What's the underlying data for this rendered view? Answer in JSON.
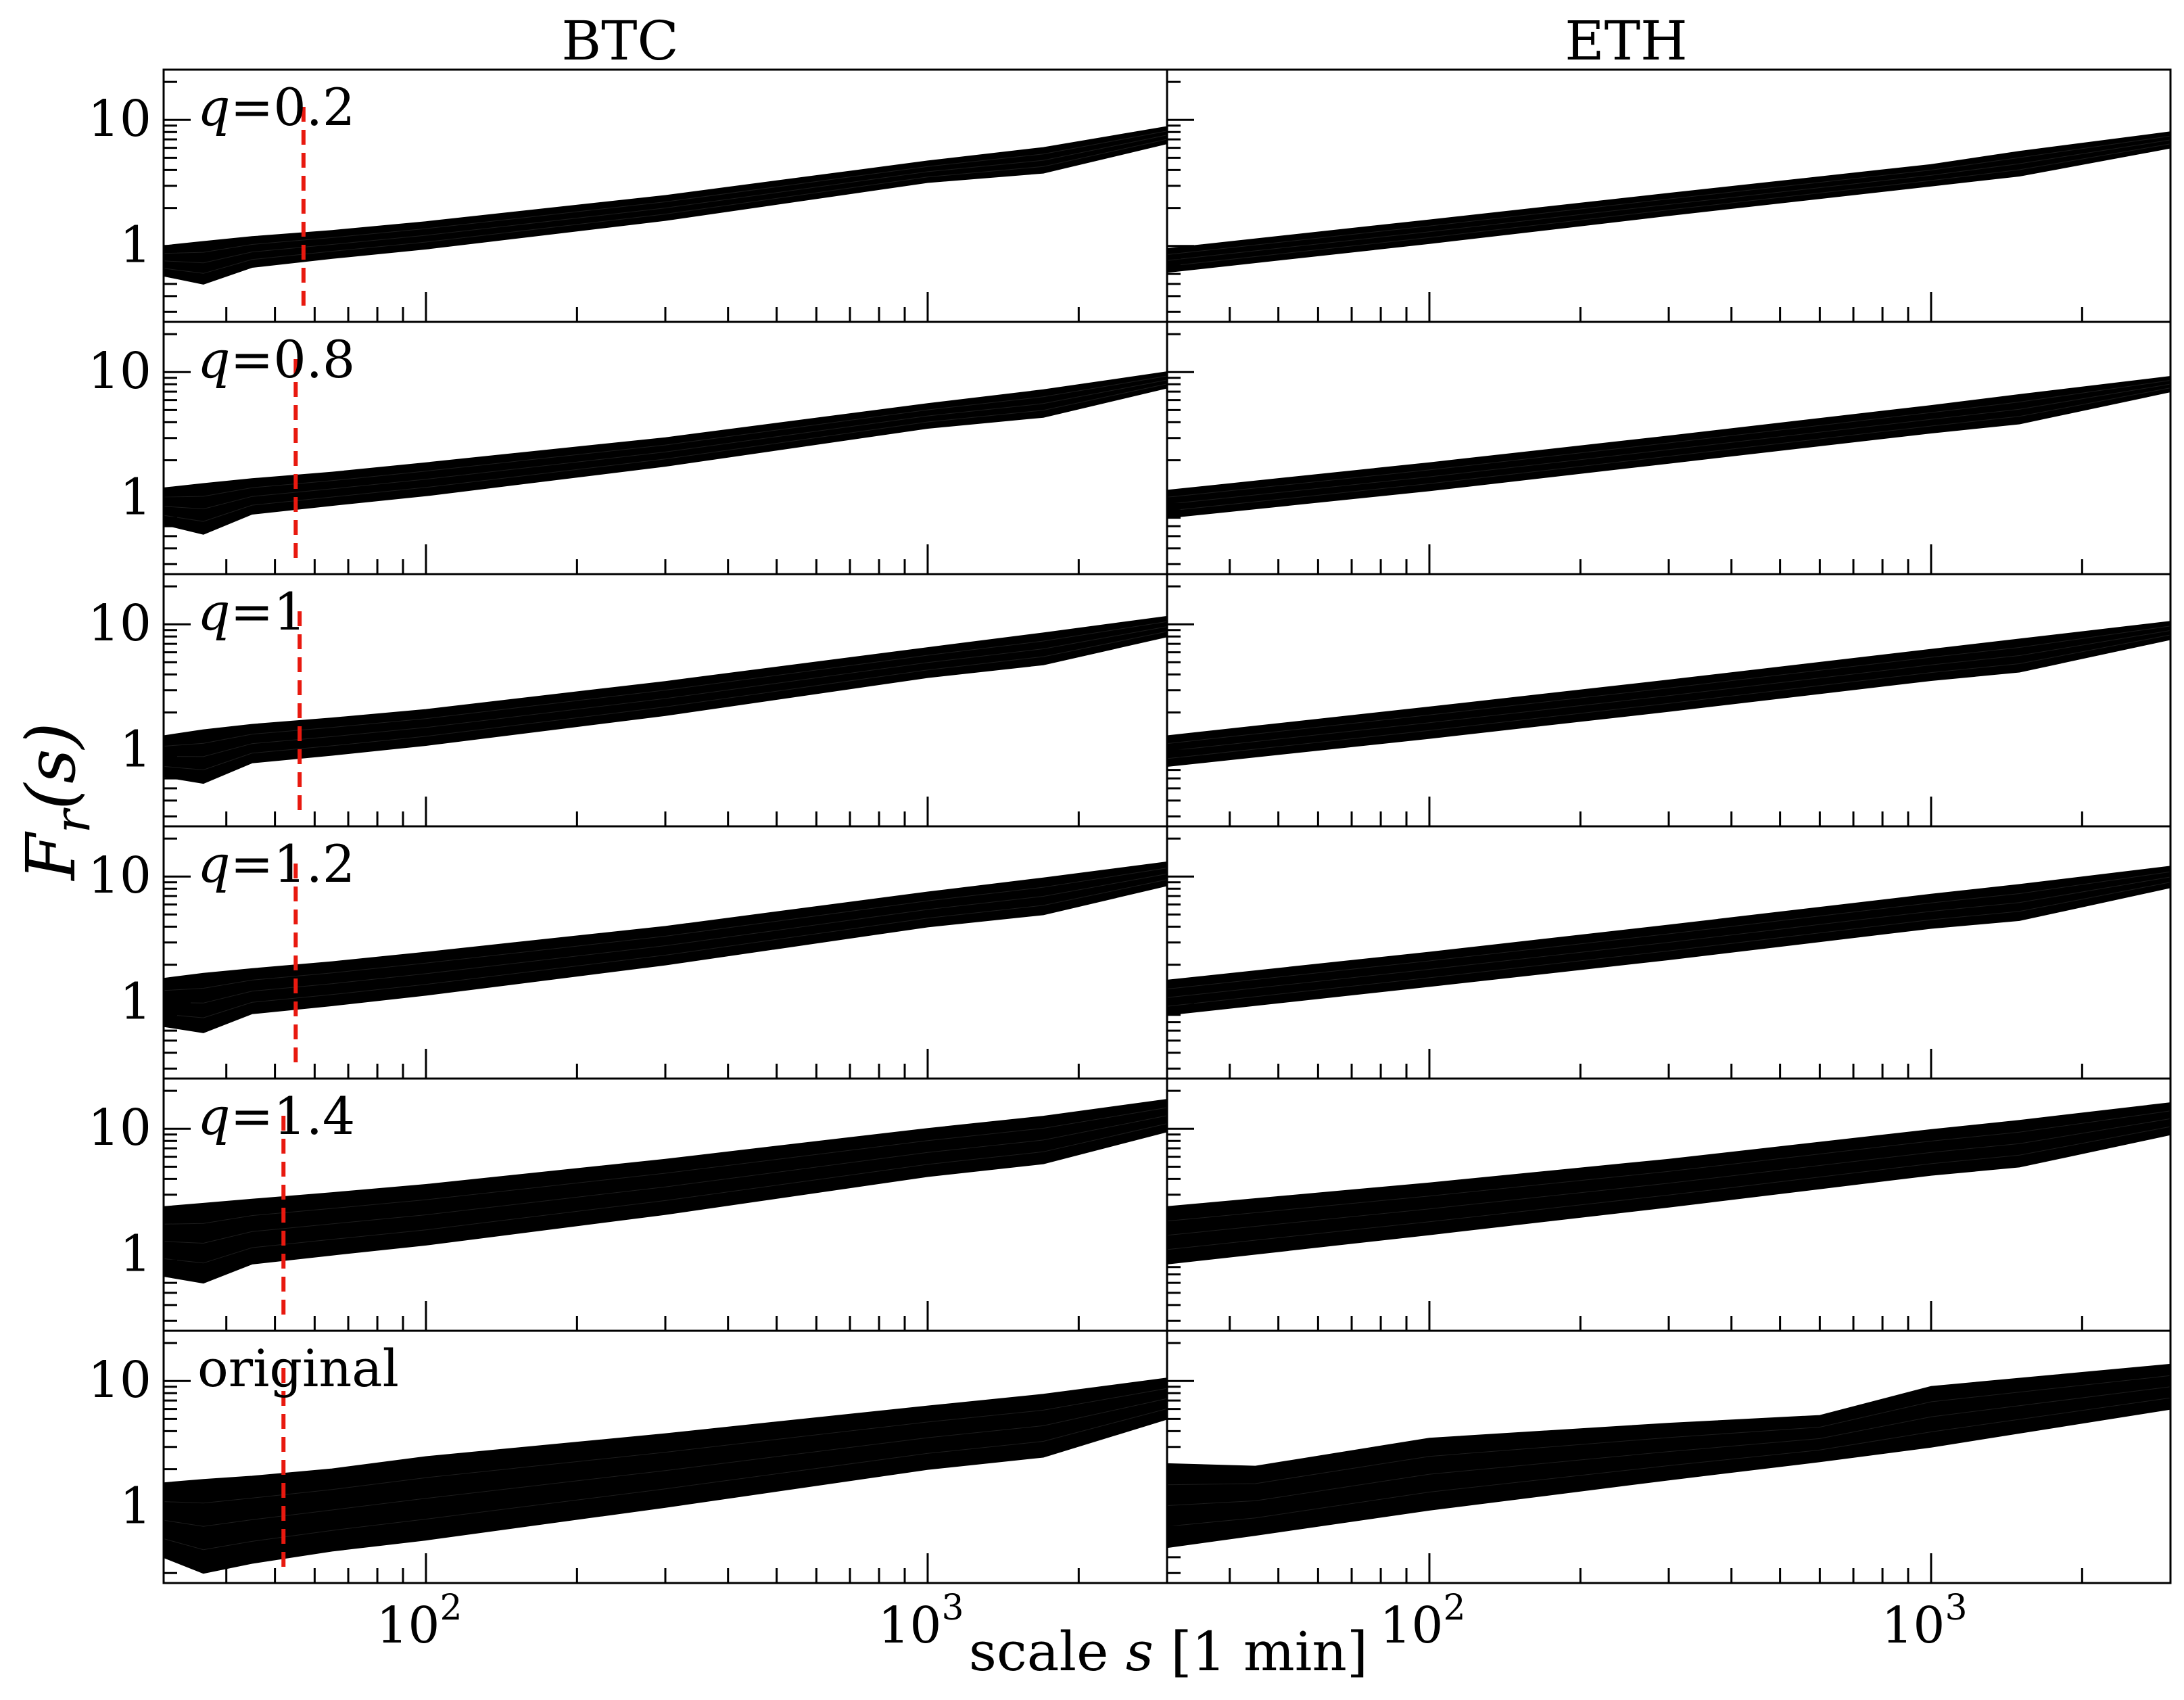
{
  "chart_data": {
    "type": "area",
    "ylabel": {
      "main": "F",
      "sub": "r",
      "arg": "(s)"
    },
    "xlabel": {
      "prefix": "scale ",
      "var": "s",
      "suffix": " [1 min]"
    },
    "columns": [
      "BTC",
      "ETH"
    ],
    "x_scale": "log",
    "y_scale": "log",
    "xlim": [
      30,
      3000
    ],
    "ylim": [
      0.25,
      25
    ],
    "x_ticks": [
      {
        "base": "10",
        "exp": "2"
      },
      {
        "base": "10",
        "exp": "3"
      }
    ],
    "y_ticks": [
      "10",
      "1"
    ],
    "colors": {
      "band": "#000000",
      "marker": "#e8190f"
    },
    "rows": [
      {
        "q": "0.2",
        "label": {
          "var": "q",
          "text": "=0.2"
        },
        "btc": {
          "x": [
            30,
            36,
            45,
            65,
            100,
            300,
            1000,
            1700,
            3000
          ],
          "upper": [
            1.0,
            1.08,
            1.18,
            1.32,
            1.55,
            2.5,
            4.7,
            6.0,
            8.8
          ],
          "lower": [
            0.58,
            0.5,
            0.68,
            0.8,
            0.95,
            1.6,
            3.2,
            3.8,
            6.5
          ],
          "marker_x": 57
        },
        "eth": {
          "x": [
            30,
            100,
            300,
            1000,
            1500,
            3000
          ],
          "upper": [
            0.95,
            1.6,
            2.6,
            4.4,
            5.6,
            8.0
          ],
          "lower": [
            0.62,
            1.05,
            1.75,
            3.0,
            3.6,
            6.0
          ]
        }
      },
      {
        "q": "0.8",
        "label": {
          "var": "q",
          "text": "=0.8"
        },
        "btc": {
          "x": [
            30,
            36,
            45,
            65,
            100,
            300,
            1000,
            1700,
            3000
          ],
          "upper": [
            1.2,
            1.3,
            1.42,
            1.6,
            1.9,
            3.0,
            5.6,
            7.2,
            10.0
          ],
          "lower": [
            0.62,
            0.52,
            0.75,
            0.88,
            1.05,
            1.8,
            3.6,
            4.4,
            7.5
          ],
          "marker_x": 55
        },
        "eth": {
          "x": [
            30,
            100,
            300,
            1000,
            1500,
            3000
          ],
          "upper": [
            1.15,
            1.9,
            3.1,
            5.4,
            6.6,
            9.2
          ],
          "lower": [
            0.7,
            1.15,
            1.9,
            3.3,
            3.9,
            7.0
          ]
        }
      },
      {
        "q": "1",
        "label": {
          "var": "q",
          "text": "=1"
        },
        "btc": {
          "x": [
            30,
            36,
            45,
            65,
            100,
            300,
            1000,
            1700,
            3000
          ],
          "upper": [
            1.3,
            1.45,
            1.6,
            1.8,
            2.1,
            3.5,
            6.5,
            8.5,
            11.5
          ],
          "lower": [
            0.62,
            0.55,
            0.8,
            0.92,
            1.1,
            1.9,
            3.8,
            4.8,
            8.0
          ],
          "marker_x": 56
        },
        "eth": {
          "x": [
            30,
            100,
            300,
            1000,
            1500,
            3000
          ],
          "upper": [
            1.3,
            2.2,
            3.6,
            6.3,
            7.6,
            10.5
          ],
          "lower": [
            0.75,
            1.25,
            2.05,
            3.6,
            4.2,
            7.6
          ]
        }
      },
      {
        "q": "1.2",
        "label": {
          "var": "q",
          "text": "=1.2"
        },
        "btc": {
          "x": [
            30,
            36,
            45,
            65,
            100,
            300,
            1000,
            1700,
            3000
          ],
          "upper": [
            1.55,
            1.7,
            1.85,
            2.1,
            2.5,
            4.0,
            7.5,
            9.7,
            13.0
          ],
          "lower": [
            0.65,
            0.58,
            0.82,
            0.95,
            1.15,
            2.0,
            4.0,
            5.0,
            8.5
          ],
          "marker_x": 55
        },
        "eth": {
          "x": [
            30,
            100,
            300,
            1000,
            1500,
            3000
          ],
          "upper": [
            1.5,
            2.5,
            4.1,
            7.2,
            8.6,
            12.0
          ],
          "lower": [
            0.8,
            1.35,
            2.2,
            3.9,
            4.5,
            8.2
          ]
        }
      },
      {
        "q": "1.4",
        "label": {
          "var": "q",
          "text": "=1.4"
        },
        "btc": {
          "x": [
            30,
            36,
            45,
            65,
            100,
            300,
            1000,
            1700,
            3000
          ],
          "upper": [
            2.4,
            2.55,
            2.75,
            3.1,
            3.6,
            5.7,
            10.0,
            12.5,
            17.0
          ],
          "lower": [
            0.68,
            0.6,
            0.85,
            1.0,
            1.2,
            2.1,
            4.2,
            5.3,
            9.5
          ],
          "marker_x": 52
        },
        "eth": {
          "x": [
            30,
            100,
            300,
            1000,
            1500,
            3000
          ],
          "upper": [
            2.4,
            3.7,
            5.7,
            9.8,
            11.6,
            16.0
          ],
          "lower": [
            0.85,
            1.45,
            2.4,
            4.3,
            5.0,
            9.0
          ]
        }
      },
      {
        "q": "original",
        "label": {
          "var": "",
          "text": "original"
        },
        "btc": {
          "x": [
            30,
            36,
            45,
            65,
            100,
            300,
            1000,
            1700,
            3000
          ],
          "upper": [
            1.55,
            1.65,
            1.75,
            2.0,
            2.5,
            3.8,
            6.3,
            7.8,
            10.5
          ],
          "lower": [
            0.4,
            0.3,
            0.36,
            0.45,
            0.55,
            1.0,
            2.0,
            2.5,
            5.0
          ],
          "marker_x": 52
        },
        "eth": {
          "x": [
            30,
            45,
            100,
            300,
            600,
            1000,
            3000
          ],
          "upper": [
            2.2,
            2.1,
            3.5,
            4.6,
            5.3,
            9.0,
            13.5
          ],
          "lower": [
            0.48,
            0.6,
            0.95,
            1.65,
            2.3,
            3.0,
            6.0
          ]
        }
      }
    ]
  }
}
